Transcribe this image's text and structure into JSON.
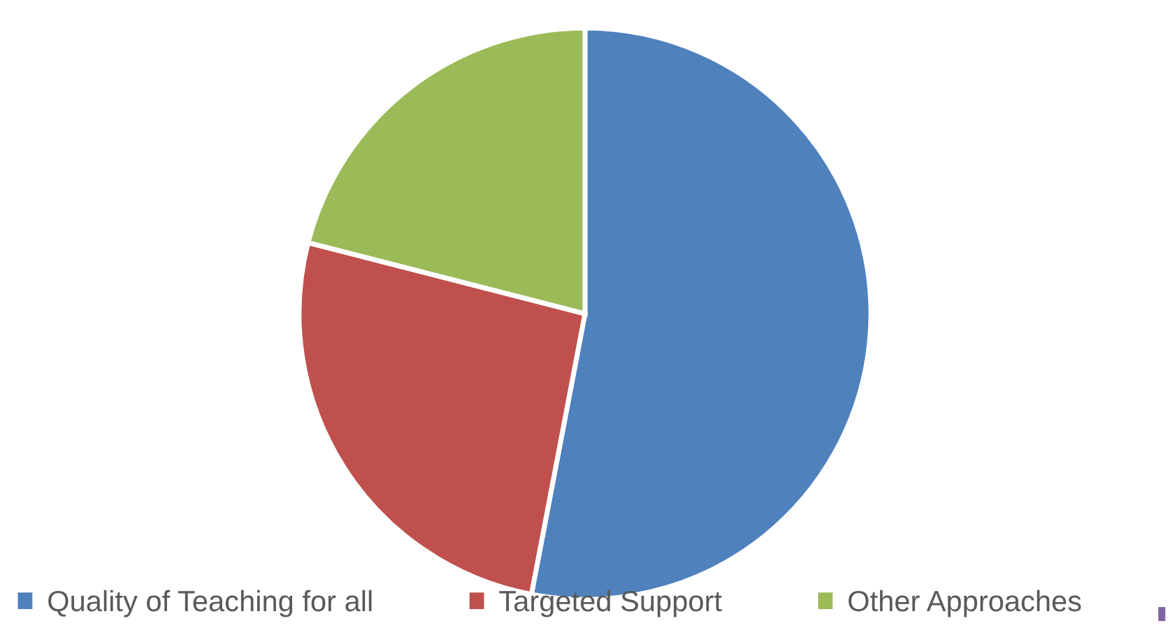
{
  "chart_data": {
    "type": "pie",
    "categories": [
      "Quality of Teaching for all",
      "Targeted Support",
      "Other Approaches"
    ],
    "values": [
      53,
      26,
      21
    ],
    "colors": [
      "#4f81bd",
      "#c0504d",
      "#9bbb59"
    ],
    "legend": "bottom"
  }
}
